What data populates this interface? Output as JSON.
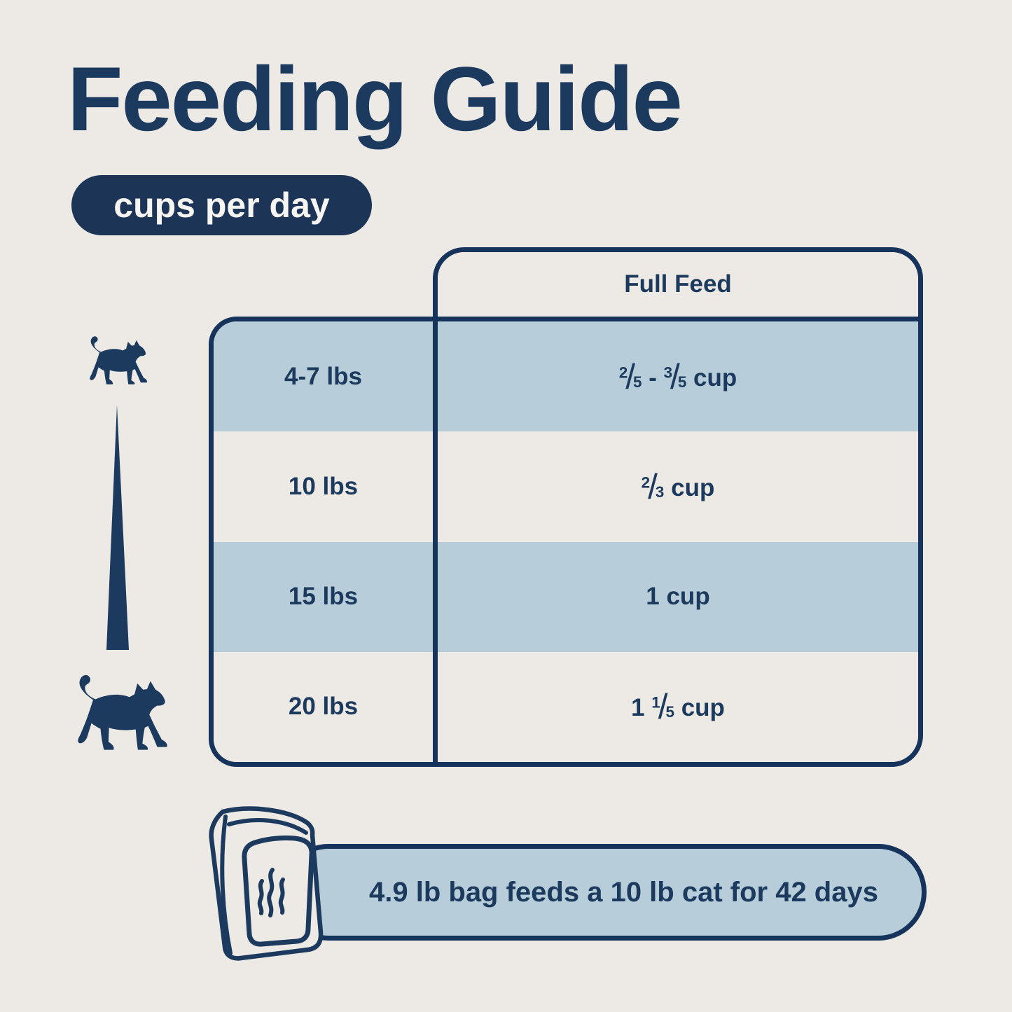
{
  "title": "Feeding Guide",
  "badge": {
    "label": "cups per day"
  },
  "table": {
    "header": "Full Feed",
    "rows": [
      {
        "weight": "4-7 lbs",
        "amount": [
          {
            "t": "frac",
            "n": "2",
            "d": "5"
          },
          {
            "t": "text",
            "v": " - "
          },
          {
            "t": "frac",
            "n": "3",
            "d": "5"
          },
          {
            "t": "text",
            "v": " cup"
          }
        ],
        "amount_text": "2/5 - 3/5 cup"
      },
      {
        "weight": "10 lbs",
        "amount": [
          {
            "t": "frac",
            "n": "2",
            "d": "3"
          },
          {
            "t": "text",
            "v": " cup"
          }
        ],
        "amount_text": "2/3 cup"
      },
      {
        "weight": "15 lbs",
        "amount": [
          {
            "t": "text",
            "v": "1 cup"
          }
        ],
        "amount_text": "1 cup"
      },
      {
        "weight": "20 lbs",
        "amount": [
          {
            "t": "text",
            "v": "1 "
          },
          {
            "t": "frac",
            "n": "1",
            "d": "5"
          },
          {
            "t": "text",
            "v": " cup"
          }
        ],
        "amount_text": "1 1/5 cup"
      }
    ]
  },
  "footer": {
    "note": "4.9 lb bag feeds a 10 lb cat for 42 days"
  },
  "icons": {
    "small_cat": "small-cat-silhouette",
    "large_cat": "large-cat-silhouette",
    "size_wedge": "size-gradient-wedge",
    "bag": "food-bag-outline",
    "steam": "steam-aroma-squiggle"
  },
  "colors": {
    "background": "#EDE9E5",
    "navy": "#1C3A5E",
    "border_navy": "#16335C",
    "light_blue": "#B7CDD9",
    "badge_bg": "#1C3556",
    "text_light": "#F7F5F2"
  }
}
